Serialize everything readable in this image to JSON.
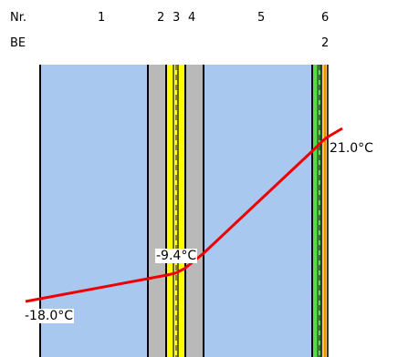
{
  "header": {
    "nr_label": "Nr.",
    "be_label": "BE",
    "layer_numbers": [
      "1",
      "2",
      "3",
      "4",
      "5",
      "6"
    ],
    "be_values": [
      "2"
    ]
  },
  "layers": [
    {
      "nr": "1",
      "color": "#a9c8f0",
      "name": "layer-1"
    },
    {
      "nr": "2",
      "color": "#b9b9b9",
      "name": "layer-2"
    },
    {
      "nr": "3",
      "color": "#ffff00",
      "name": "layer-3"
    },
    {
      "nr": "4",
      "color": "#b9b9b9",
      "name": "layer-4"
    },
    {
      "nr": "5",
      "color": "#a9c8f0",
      "name": "layer-5"
    },
    {
      "nr": "6",
      "color": "#55dd44",
      "name": "layer-6"
    }
  ],
  "temperatures": {
    "outside": "-18.0°C",
    "interface": "-9.4°C",
    "inside": "21.0°C"
  },
  "colors": {
    "temperature_line": "#ee0000",
    "dew_line": "#111111",
    "border": "#000000"
  }
}
